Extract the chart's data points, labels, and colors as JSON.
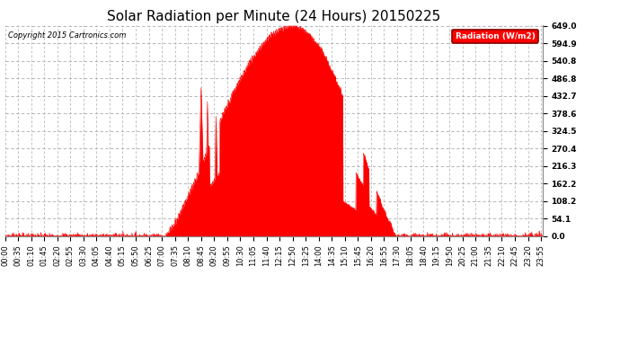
{
  "title": "Solar Radiation per Minute (24 Hours) 20150225",
  "copyright_text": "Copyright 2015 Cartronics.com",
  "legend_label": "Radiation (W/m2)",
  "y_ticks": [
    0.0,
    54.1,
    108.2,
    162.2,
    216.3,
    270.4,
    324.5,
    378.6,
    432.7,
    486.8,
    540.8,
    594.9,
    649.0
  ],
  "y_max": 649.0,
  "y_min": 0.0,
  "fill_color": "#FF0000",
  "line_color": "#FF0000",
  "background_color": "#FFFFFF",
  "grid_color": "#AAAAAA",
  "dashed_zero_color": "#FF0000",
  "title_fontsize": 11,
  "tick_fontsize": 6.5,
  "total_minutes": 1440,
  "sunrise_minute": 428,
  "sunset_minute": 1050,
  "peak_minute": 770,
  "peak_value": 649.0,
  "x_tick_labels": [
    "00:00",
    "00:35",
    "01:10",
    "01:45",
    "02:20",
    "02:55",
    "03:30",
    "04:05",
    "04:40",
    "05:15",
    "05:50",
    "06:25",
    "07:00",
    "07:35",
    "08:10",
    "08:45",
    "09:20",
    "09:55",
    "10:30",
    "11:05",
    "11:40",
    "12:15",
    "12:50",
    "13:25",
    "14:00",
    "14:35",
    "15:10",
    "15:45",
    "16:20",
    "16:55",
    "17:30",
    "18:05",
    "18:40",
    "19:15",
    "19:50",
    "20:25",
    "21:00",
    "21:35",
    "22:10",
    "22:45",
    "23:20",
    "23:55"
  ]
}
